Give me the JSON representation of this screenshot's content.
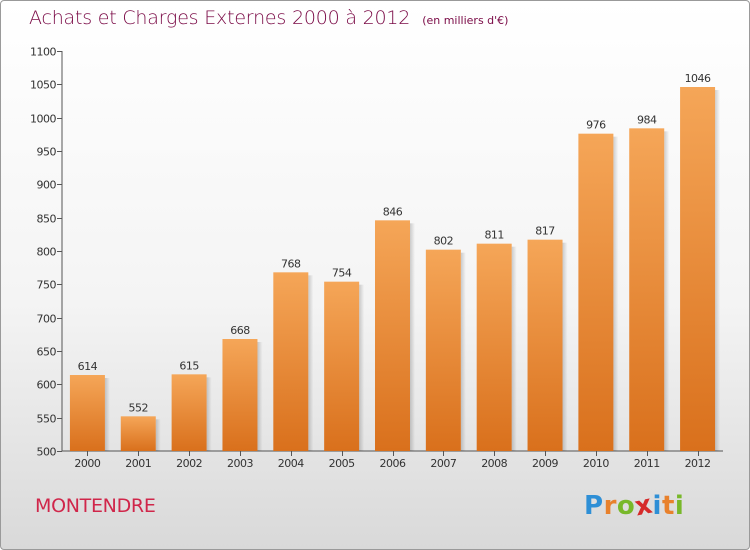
{
  "header": {
    "title": "Achats et Charges Externes 2000 à 2012",
    "unit": "(en milliers d'€)"
  },
  "footer": {
    "place": "MONTENDRE",
    "logo": [
      "P",
      "r",
      "o",
      "x",
      "i",
      "t",
      "i"
    ],
    "logo_colors": [
      "#2e8fd6",
      "#e8812c",
      "#78b82a",
      "#d62a2a",
      "#2e8fd6",
      "#e8812c",
      "#78b82a"
    ]
  },
  "chart_data": {
    "type": "bar",
    "categories": [
      "2000",
      "2001",
      "2002",
      "2003",
      "2004",
      "2005",
      "2006",
      "2007",
      "2008",
      "2009",
      "2010",
      "2011",
      "2012"
    ],
    "values": [
      614,
      552,
      615,
      668,
      768,
      754,
      846,
      802,
      811,
      817,
      976,
      984,
      1046
    ],
    "ylim": [
      500,
      1100
    ],
    "yticks": [
      500,
      550,
      600,
      650,
      700,
      750,
      800,
      850,
      900,
      950,
      1000,
      1050,
      1100
    ],
    "grid": false,
    "bar_color_top": "#f5a658",
    "bar_color_bottom": "#d9701c"
  }
}
